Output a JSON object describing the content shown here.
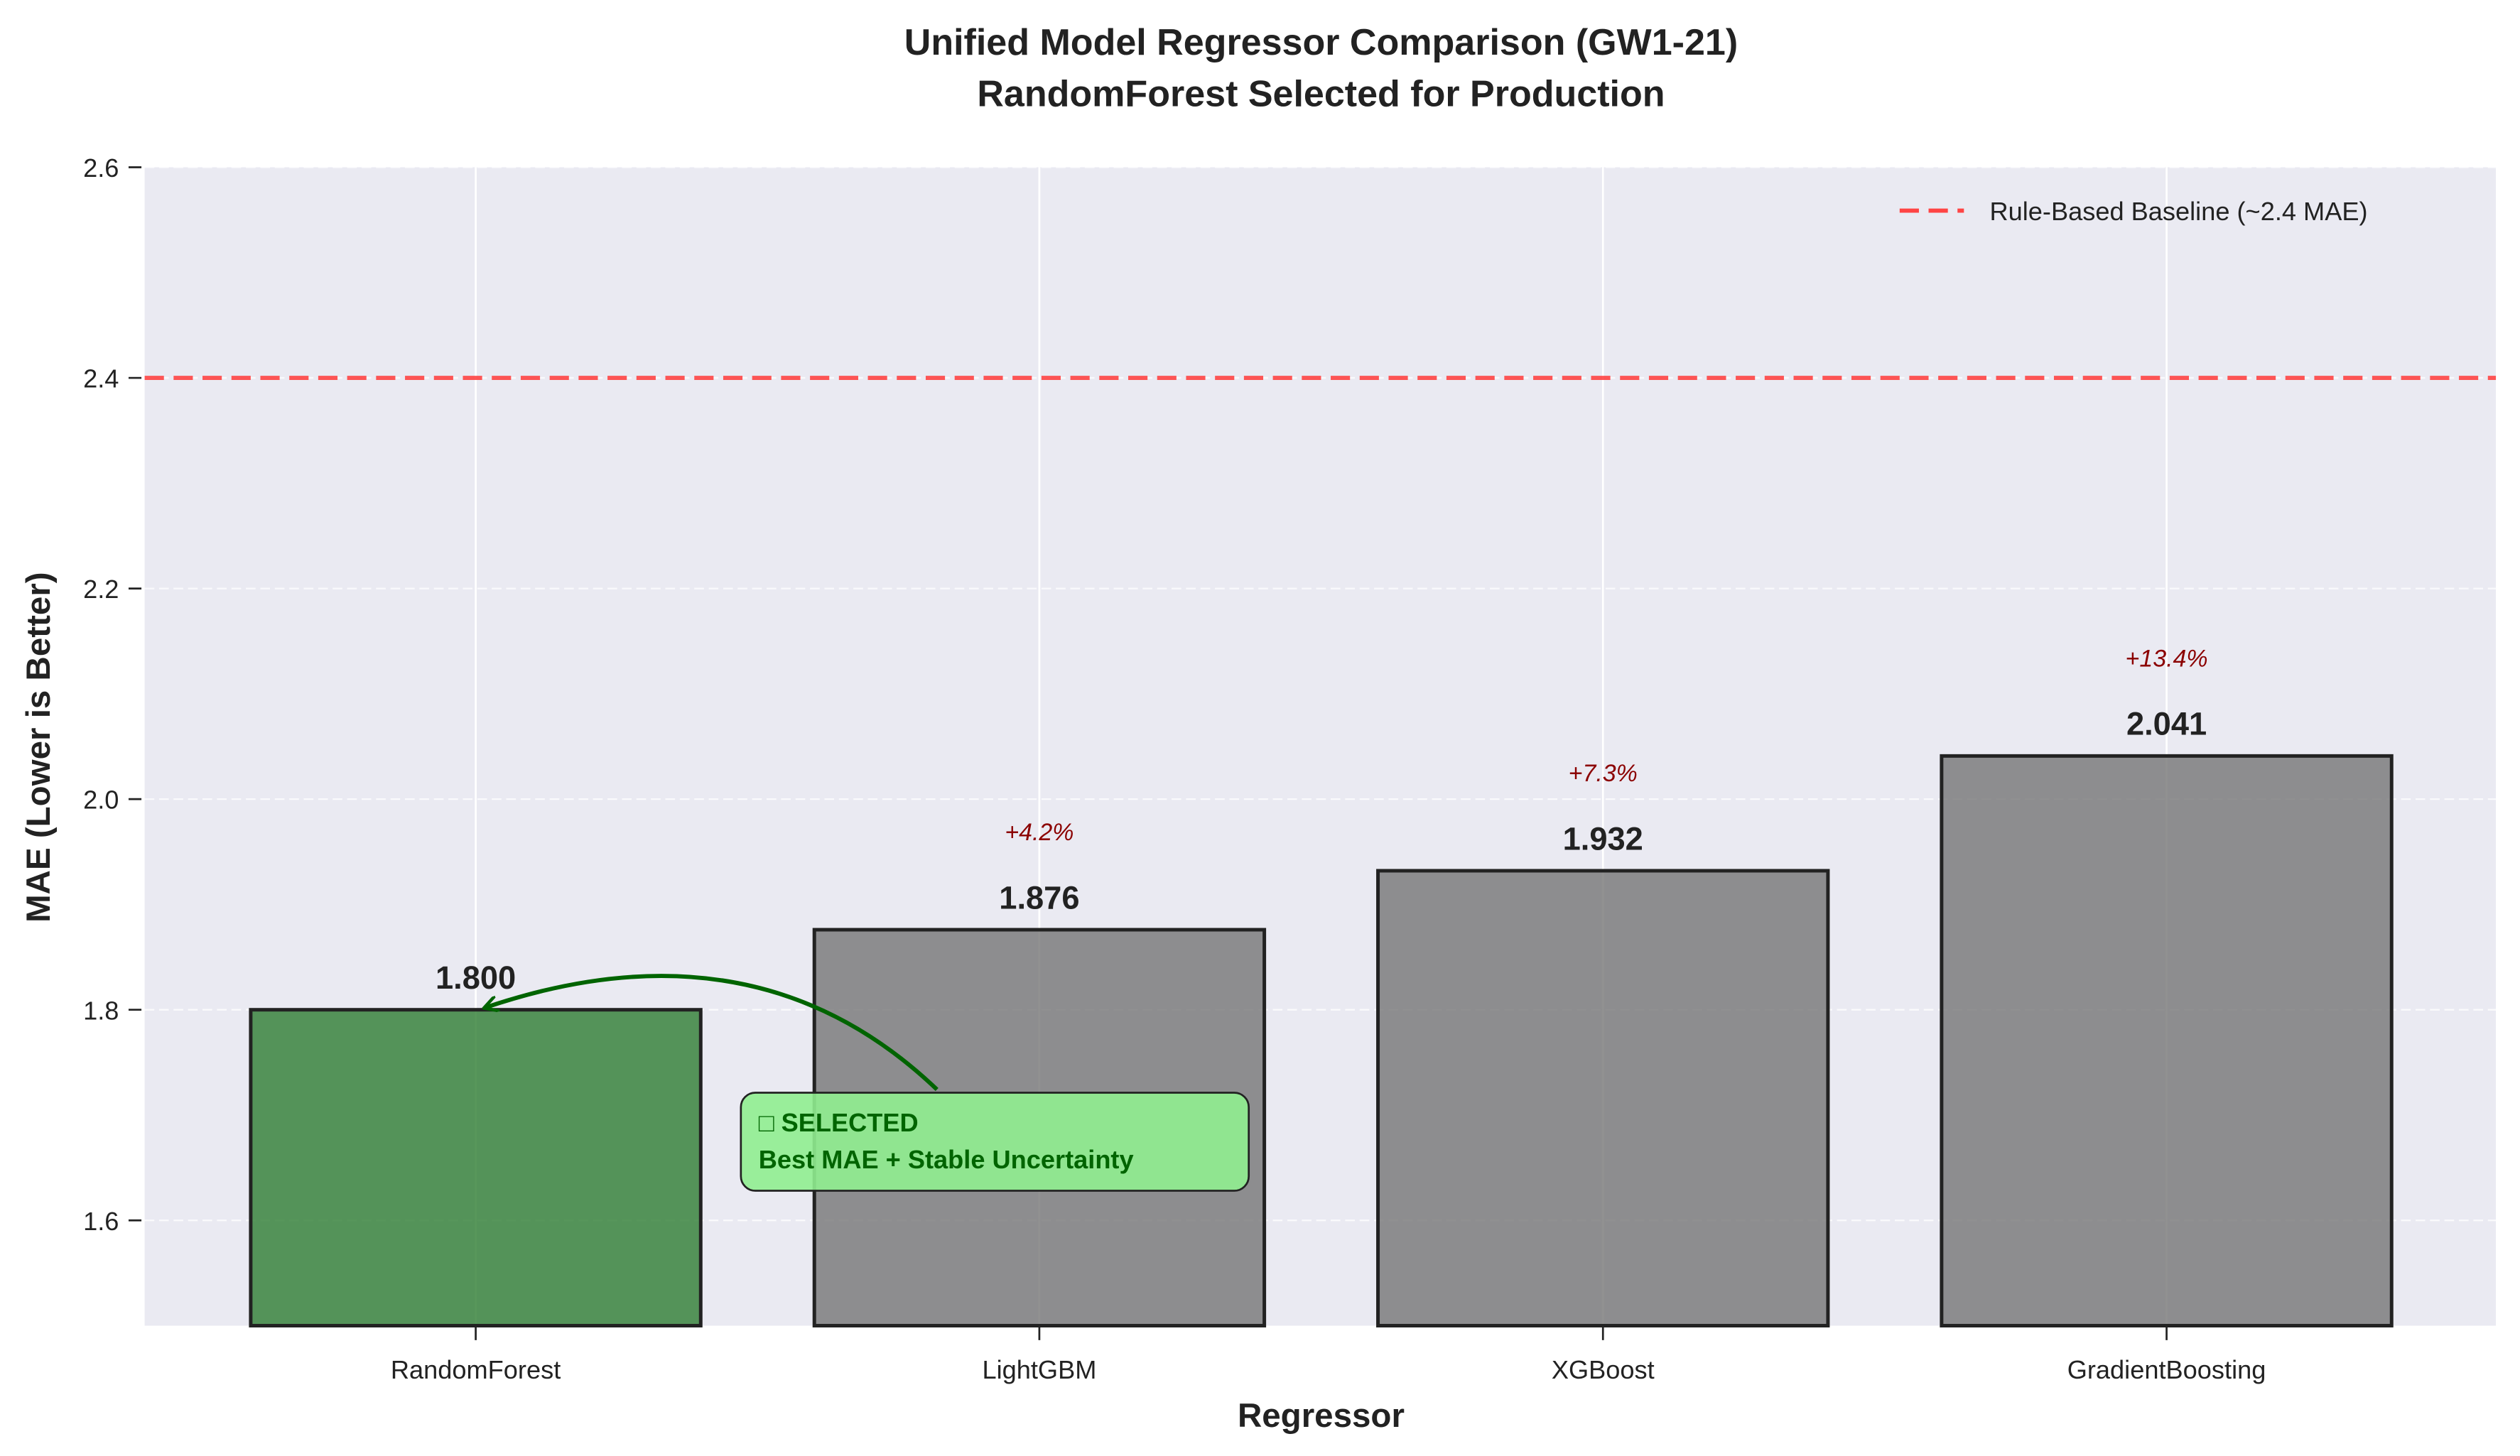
{
  "chart_data": {
    "type": "bar",
    "title": "Unified Model Regressor Comparison (GW1-21)",
    "subtitle": "RandomForest Selected for Production",
    "xlabel": "Regressor",
    "ylabel": "MAE (Lower is Better)",
    "categories": [
      "RandomForest",
      "LightGBM",
      "XGBoost",
      "GradientBoosting"
    ],
    "values": [
      1.8,
      1.876,
      1.932,
      2.041
    ],
    "value_labels": [
      "1.800",
      "1.876",
      "1.932",
      "2.041"
    ],
    "pct_labels": [
      "",
      "+4.2%",
      "+7.3%",
      "+13.4%"
    ],
    "bar_colors": [
      "#2e7d32",
      "#757575",
      "#757575",
      "#757575"
    ],
    "ylim": [
      1.5,
      2.6
    ],
    "yticks": [
      1.6,
      1.8,
      2.0,
      2.2,
      2.4,
      2.6
    ],
    "ytick_labels": [
      "1.6",
      "1.8",
      "2.0",
      "2.2",
      "2.4",
      "2.6"
    ],
    "grid": true,
    "baseline": {
      "value": 2.4,
      "label": "Rule-Based Baseline (~2.4 MAE)",
      "color": "#ff4444",
      "style": "dashed"
    },
    "legend_placement": "top-right",
    "annotation": {
      "line1": "□ SELECTED",
      "line2": "Best MAE + Stable Uncertainty",
      "target": "RandomForest",
      "color": "#006400",
      "box_color": "#90ee90"
    }
  }
}
